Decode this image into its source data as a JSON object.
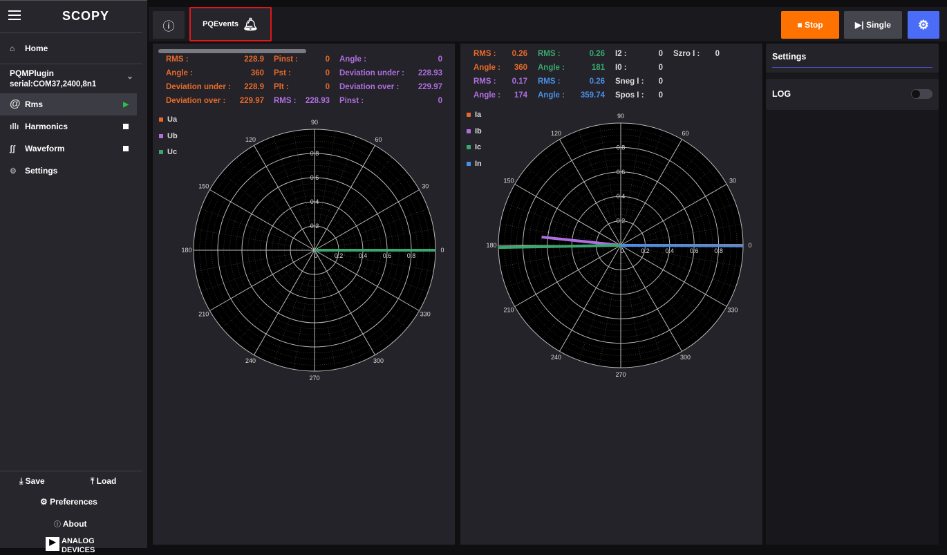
{
  "app": {
    "title": "SCOPY"
  },
  "sidebar": {
    "home": "Home",
    "device": {
      "name": "PQMPlugin",
      "conn": "serial:COM37,2400,8n1"
    },
    "items": [
      {
        "label": "Rms",
        "state": "running"
      },
      {
        "label": "Harmonics",
        "state": "stopped"
      },
      {
        "label": "Waveform",
        "state": "stopped"
      },
      {
        "label": "Settings"
      }
    ],
    "save": "Save",
    "load": "Load",
    "preferences": "Preferences",
    "about": "About",
    "logo": "ANALOG DEVICES"
  },
  "topbar": {
    "pqevents": "PQEvents",
    "stop": "Stop",
    "single": "Single"
  },
  "colors": {
    "a": "#e8692a",
    "b": "#b06fe0",
    "c": "#3aa86e",
    "n": "#4a8fe6",
    "stop": "#ff7200",
    "gear": "#4a6cf7"
  },
  "voltage": {
    "col1": [
      [
        "RMS :",
        "228.9"
      ],
      [
        "Angle :",
        "360"
      ],
      [
        "Deviation under :",
        "228.9"
      ],
      [
        "Deviation over :",
        "229.97"
      ]
    ],
    "col2": [
      [
        "Pinst :",
        "0"
      ],
      [
        "Pst :",
        "0"
      ],
      [
        "Plt :",
        "0"
      ],
      [
        "RMS :",
        "228.93"
      ]
    ],
    "col3": [
      [
        "Angle :",
        "0"
      ],
      [
        "Deviation under :",
        "228.93"
      ],
      [
        "Deviation over :",
        "229.97"
      ],
      [
        "Pinst :",
        "0"
      ]
    ],
    "legend": [
      "Ua",
      "Ub",
      "Uc"
    ]
  },
  "current": {
    "col1": [
      [
        "RMS :",
        "0.26"
      ],
      [
        "Angle :",
        "360"
      ],
      [
        "RMS :",
        "0.17"
      ],
      [
        "Angle :",
        "174"
      ]
    ],
    "col2": [
      [
        "RMS :",
        "0.26"
      ],
      [
        "Angle :",
        "181"
      ],
      [
        "RMS :",
        "0.26"
      ],
      [
        "Angle :",
        "359.74"
      ]
    ],
    "col3": [
      [
        "I2 :",
        "0"
      ],
      [
        "I0 :",
        "0"
      ],
      [
        "Sneg I :",
        "0"
      ],
      [
        "Spos I :",
        "0"
      ]
    ],
    "col4": [
      [
        "Szro I :",
        "0"
      ]
    ],
    "legend": [
      "Ia",
      "Ib",
      "Ic",
      "In"
    ]
  },
  "settings": {
    "title": "Settings",
    "log": "LOG",
    "log_on": false
  },
  "chart_data": [
    {
      "type": "polar",
      "radial_ticks": [
        "0",
        "0.2",
        "0.4",
        "0.6",
        "0.8"
      ],
      "angle_ticks": [
        "0",
        "30",
        "60",
        "90",
        "120",
        "150",
        "180",
        "210",
        "240",
        "270",
        "300",
        "330"
      ],
      "rlim": [
        0,
        1
      ],
      "series": [
        {
          "name": "Ua",
          "angle": 360,
          "r": 1.0
        },
        {
          "name": "Ub",
          "angle": 0,
          "r": 1.0
        },
        {
          "name": "Uc",
          "angle": 0,
          "r": 1.0
        }
      ]
    },
    {
      "type": "polar",
      "radial_ticks": [
        "0",
        "0.2",
        "0.4",
        "0.6",
        "0.8"
      ],
      "angle_ticks": [
        "0",
        "30",
        "60",
        "90",
        "120",
        "150",
        "180",
        "210",
        "240",
        "270",
        "300",
        "330"
      ],
      "rlim": [
        0,
        1
      ],
      "series": [
        {
          "name": "Ia",
          "angle": 360,
          "r": 1.0
        },
        {
          "name": "Ib",
          "angle": 174,
          "r": 0.65
        },
        {
          "name": "Ic",
          "angle": 181,
          "r": 1.0
        },
        {
          "name": "In",
          "angle": 359.74,
          "r": 1.0
        }
      ]
    }
  ]
}
